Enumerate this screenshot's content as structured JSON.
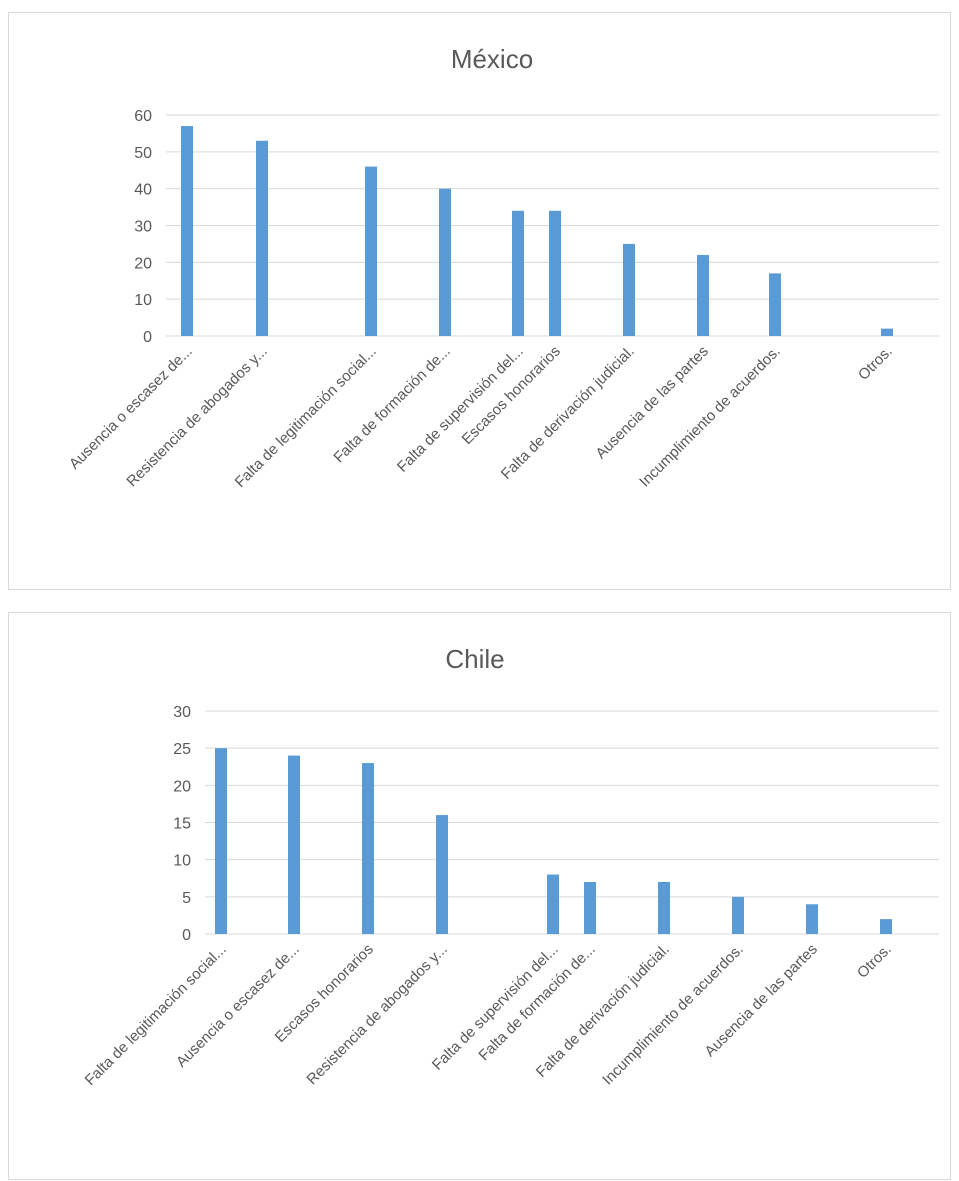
{
  "colors": {
    "bar": "#5b9bd5",
    "grid": "#d9d9d9",
    "text": "#595959"
  },
  "chart_data": [
    {
      "type": "bar",
      "title": "México",
      "categories": [
        "Ausencia o escasez de...",
        "Resistencia de abogados y...",
        "Falta de legitimación social...",
        "Falta de formación de...",
        "Falta de supervisión del...",
        "Escasos honorarios",
        "Falta de derivación judicial.",
        "Ausencia de las partes",
        "Incumplimiento de acuerdos.",
        "Otros."
      ],
      "values": [
        57,
        53,
        46,
        40,
        34,
        34,
        25,
        22,
        17,
        2
      ],
      "yticks": [
        "0",
        "10",
        "20",
        "30",
        "40",
        "50",
        "60"
      ],
      "ylim": [
        0,
        60
      ],
      "grid": true,
      "legend": "none"
    },
    {
      "type": "bar",
      "title": "Chile",
      "categories": [
        "Falta de legitimación social...",
        "Ausencia o escasez de...",
        "Escasos honorarios",
        "Resistencia de abogados y...",
        "Falta de supervisión del...",
        "Falta de formación de...",
        "Falta de derivación judicial.",
        "Incumplimiento de acuerdos.",
        "Ausencia de las partes",
        "Otros."
      ],
      "values": [
        25,
        24,
        23,
        16,
        8,
        7,
        7,
        5,
        4,
        2
      ],
      "yticks": [
        "0",
        "5",
        "10",
        "15",
        "20",
        "25",
        "30"
      ],
      "ylim": [
        0,
        30
      ],
      "grid": true,
      "legend": "none"
    }
  ]
}
